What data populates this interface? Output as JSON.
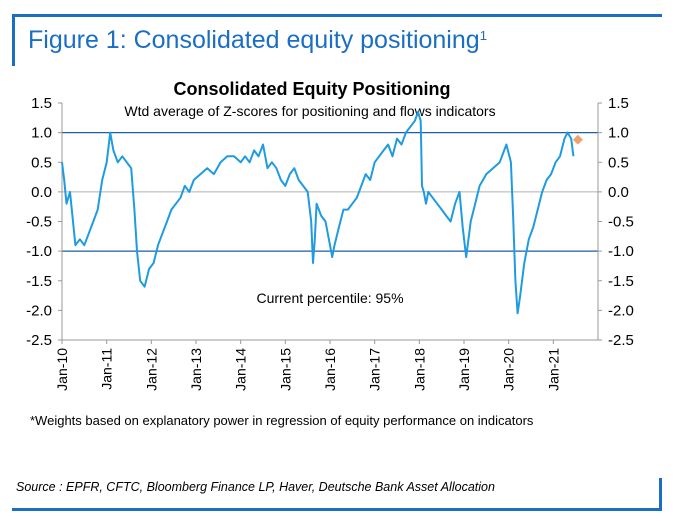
{
  "figure": {
    "label": "Figure 1: Consolidated equity positioning",
    "superscript": "1",
    "footnote": "*Weights based on explanatory power in regression of equity performance on indicators",
    "source": "Source : EPFR, CFTC, Bloomberg Finance LP, Haver, Deutsche Bank Asset Allocation"
  },
  "colors": {
    "accent": "#1a6fc4",
    "series": "#1f9be0",
    "marker": "#f0a070",
    "line": "#1f5fa0"
  },
  "chart_data": {
    "type": "line",
    "title": "Consolidated Equity Positioning",
    "subtitle": "Wtd average of Z-scores for positioning and flows indicators",
    "annotation": "Current percentile: 95%",
    "ylim": [
      -2.5,
      1.5
    ],
    "yticks": [
      1.5,
      1.0,
      0.5,
      0.0,
      -0.5,
      -1.0,
      -1.5,
      -2.0,
      -2.5
    ],
    "ytick_labels": [
      "1.5",
      "1.0",
      "0.5",
      "0.0",
      "-0.5",
      "-1.0",
      "-1.5",
      "-2.0",
      "-2.5"
    ],
    "xlim": [
      2010.0,
      2022.0
    ],
    "xticks": [
      2010,
      2011,
      2012,
      2013,
      2014,
      2015,
      2016,
      2017,
      2018,
      2019,
      2020,
      2021
    ],
    "xtick_labels": [
      "Jan-10",
      "Jan-11",
      "Jan-12",
      "Jan-13",
      "Jan-14",
      "Jan-15",
      "Jan-16",
      "Jan-17",
      "Jan-18",
      "Jan-19",
      "Jan-20",
      "Jan-21"
    ],
    "reference_lines": [
      1.0,
      0.0,
      -1.0
    ],
    "series": [
      {
        "name": "Consolidated equity positioning",
        "x": [
          2010.0,
          2010.05,
          2010.1,
          2010.18,
          2010.3,
          2010.4,
          2010.5,
          2010.6,
          2010.7,
          2010.8,
          2010.9,
          2011.0,
          2011.08,
          2011.15,
          2011.25,
          2011.35,
          2011.45,
          2011.55,
          2011.62,
          2011.68,
          2011.75,
          2011.85,
          2011.95,
          2012.05,
          2012.15,
          2012.25,
          2012.35,
          2012.45,
          2012.55,
          2012.65,
          2012.75,
          2012.85,
          2012.95,
          2013.1,
          2013.25,
          2013.4,
          2013.55,
          2013.7,
          2013.85,
          2014.0,
          2014.1,
          2014.2,
          2014.3,
          2014.4,
          2014.5,
          2014.6,
          2014.7,
          2014.8,
          2014.9,
          2015.0,
          2015.1,
          2015.2,
          2015.3,
          2015.4,
          2015.5,
          2015.58,
          2015.62,
          2015.66,
          2015.7,
          2015.8,
          2015.9,
          2016.0,
          2016.05,
          2016.1,
          2016.2,
          2016.3,
          2016.4,
          2016.5,
          2016.6,
          2016.7,
          2016.8,
          2016.9,
          2017.0,
          2017.1,
          2017.2,
          2017.3,
          2017.4,
          2017.5,
          2017.6,
          2017.7,
          2017.8,
          2017.9,
          2017.97,
          2018.03,
          2018.06,
          2018.1,
          2018.15,
          2018.2,
          2018.3,
          2018.4,
          2018.5,
          2018.6,
          2018.7,
          2018.8,
          2018.9,
          2018.97,
          2019.05,
          2019.15,
          2019.25,
          2019.35,
          2019.5,
          2019.65,
          2019.8,
          2019.95,
          2020.05,
          2020.1,
          2020.15,
          2020.2,
          2020.25,
          2020.35,
          2020.45,
          2020.55,
          2020.65,
          2020.75,
          2020.85,
          2020.95,
          2021.05,
          2021.15,
          2021.25,
          2021.32,
          2021.4,
          2021.45
        ],
        "values": [
          0.5,
          0.2,
          -0.2,
          0.0,
          -0.9,
          -0.8,
          -0.9,
          -0.7,
          -0.5,
          -0.3,
          0.2,
          0.5,
          1.0,
          0.7,
          0.5,
          0.6,
          0.5,
          0.4,
          -0.3,
          -1.0,
          -1.5,
          -1.6,
          -1.3,
          -1.2,
          -0.9,
          -0.7,
          -0.5,
          -0.3,
          -0.2,
          -0.1,
          0.1,
          0.0,
          0.2,
          0.3,
          0.4,
          0.3,
          0.5,
          0.6,
          0.6,
          0.5,
          0.6,
          0.5,
          0.7,
          0.6,
          0.8,
          0.4,
          0.5,
          0.4,
          0.2,
          0.1,
          0.3,
          0.4,
          0.2,
          0.1,
          0.0,
          -0.5,
          -1.2,
          -0.8,
          -0.2,
          -0.4,
          -0.5,
          -0.9,
          -1.1,
          -0.9,
          -0.6,
          -0.3,
          -0.3,
          -0.2,
          -0.1,
          0.1,
          0.3,
          0.2,
          0.5,
          0.6,
          0.7,
          0.8,
          0.6,
          0.9,
          0.8,
          1.0,
          1.1,
          1.2,
          1.35,
          1.2,
          0.1,
          0.0,
          -0.2,
          0.0,
          -0.1,
          -0.2,
          -0.3,
          -0.4,
          -0.5,
          -0.2,
          0.0,
          -0.6,
          -1.1,
          -0.5,
          -0.2,
          0.1,
          0.3,
          0.4,
          0.5,
          0.8,
          0.5,
          -0.4,
          -1.5,
          -2.05,
          -1.8,
          -1.2,
          -0.8,
          -0.6,
          -0.3,
          0.0,
          0.2,
          0.3,
          0.5,
          0.6,
          0.9,
          1.0,
          0.9,
          0.6
        ]
      }
    ],
    "current_point": {
      "x": 2021.55,
      "y": 0.88
    }
  }
}
